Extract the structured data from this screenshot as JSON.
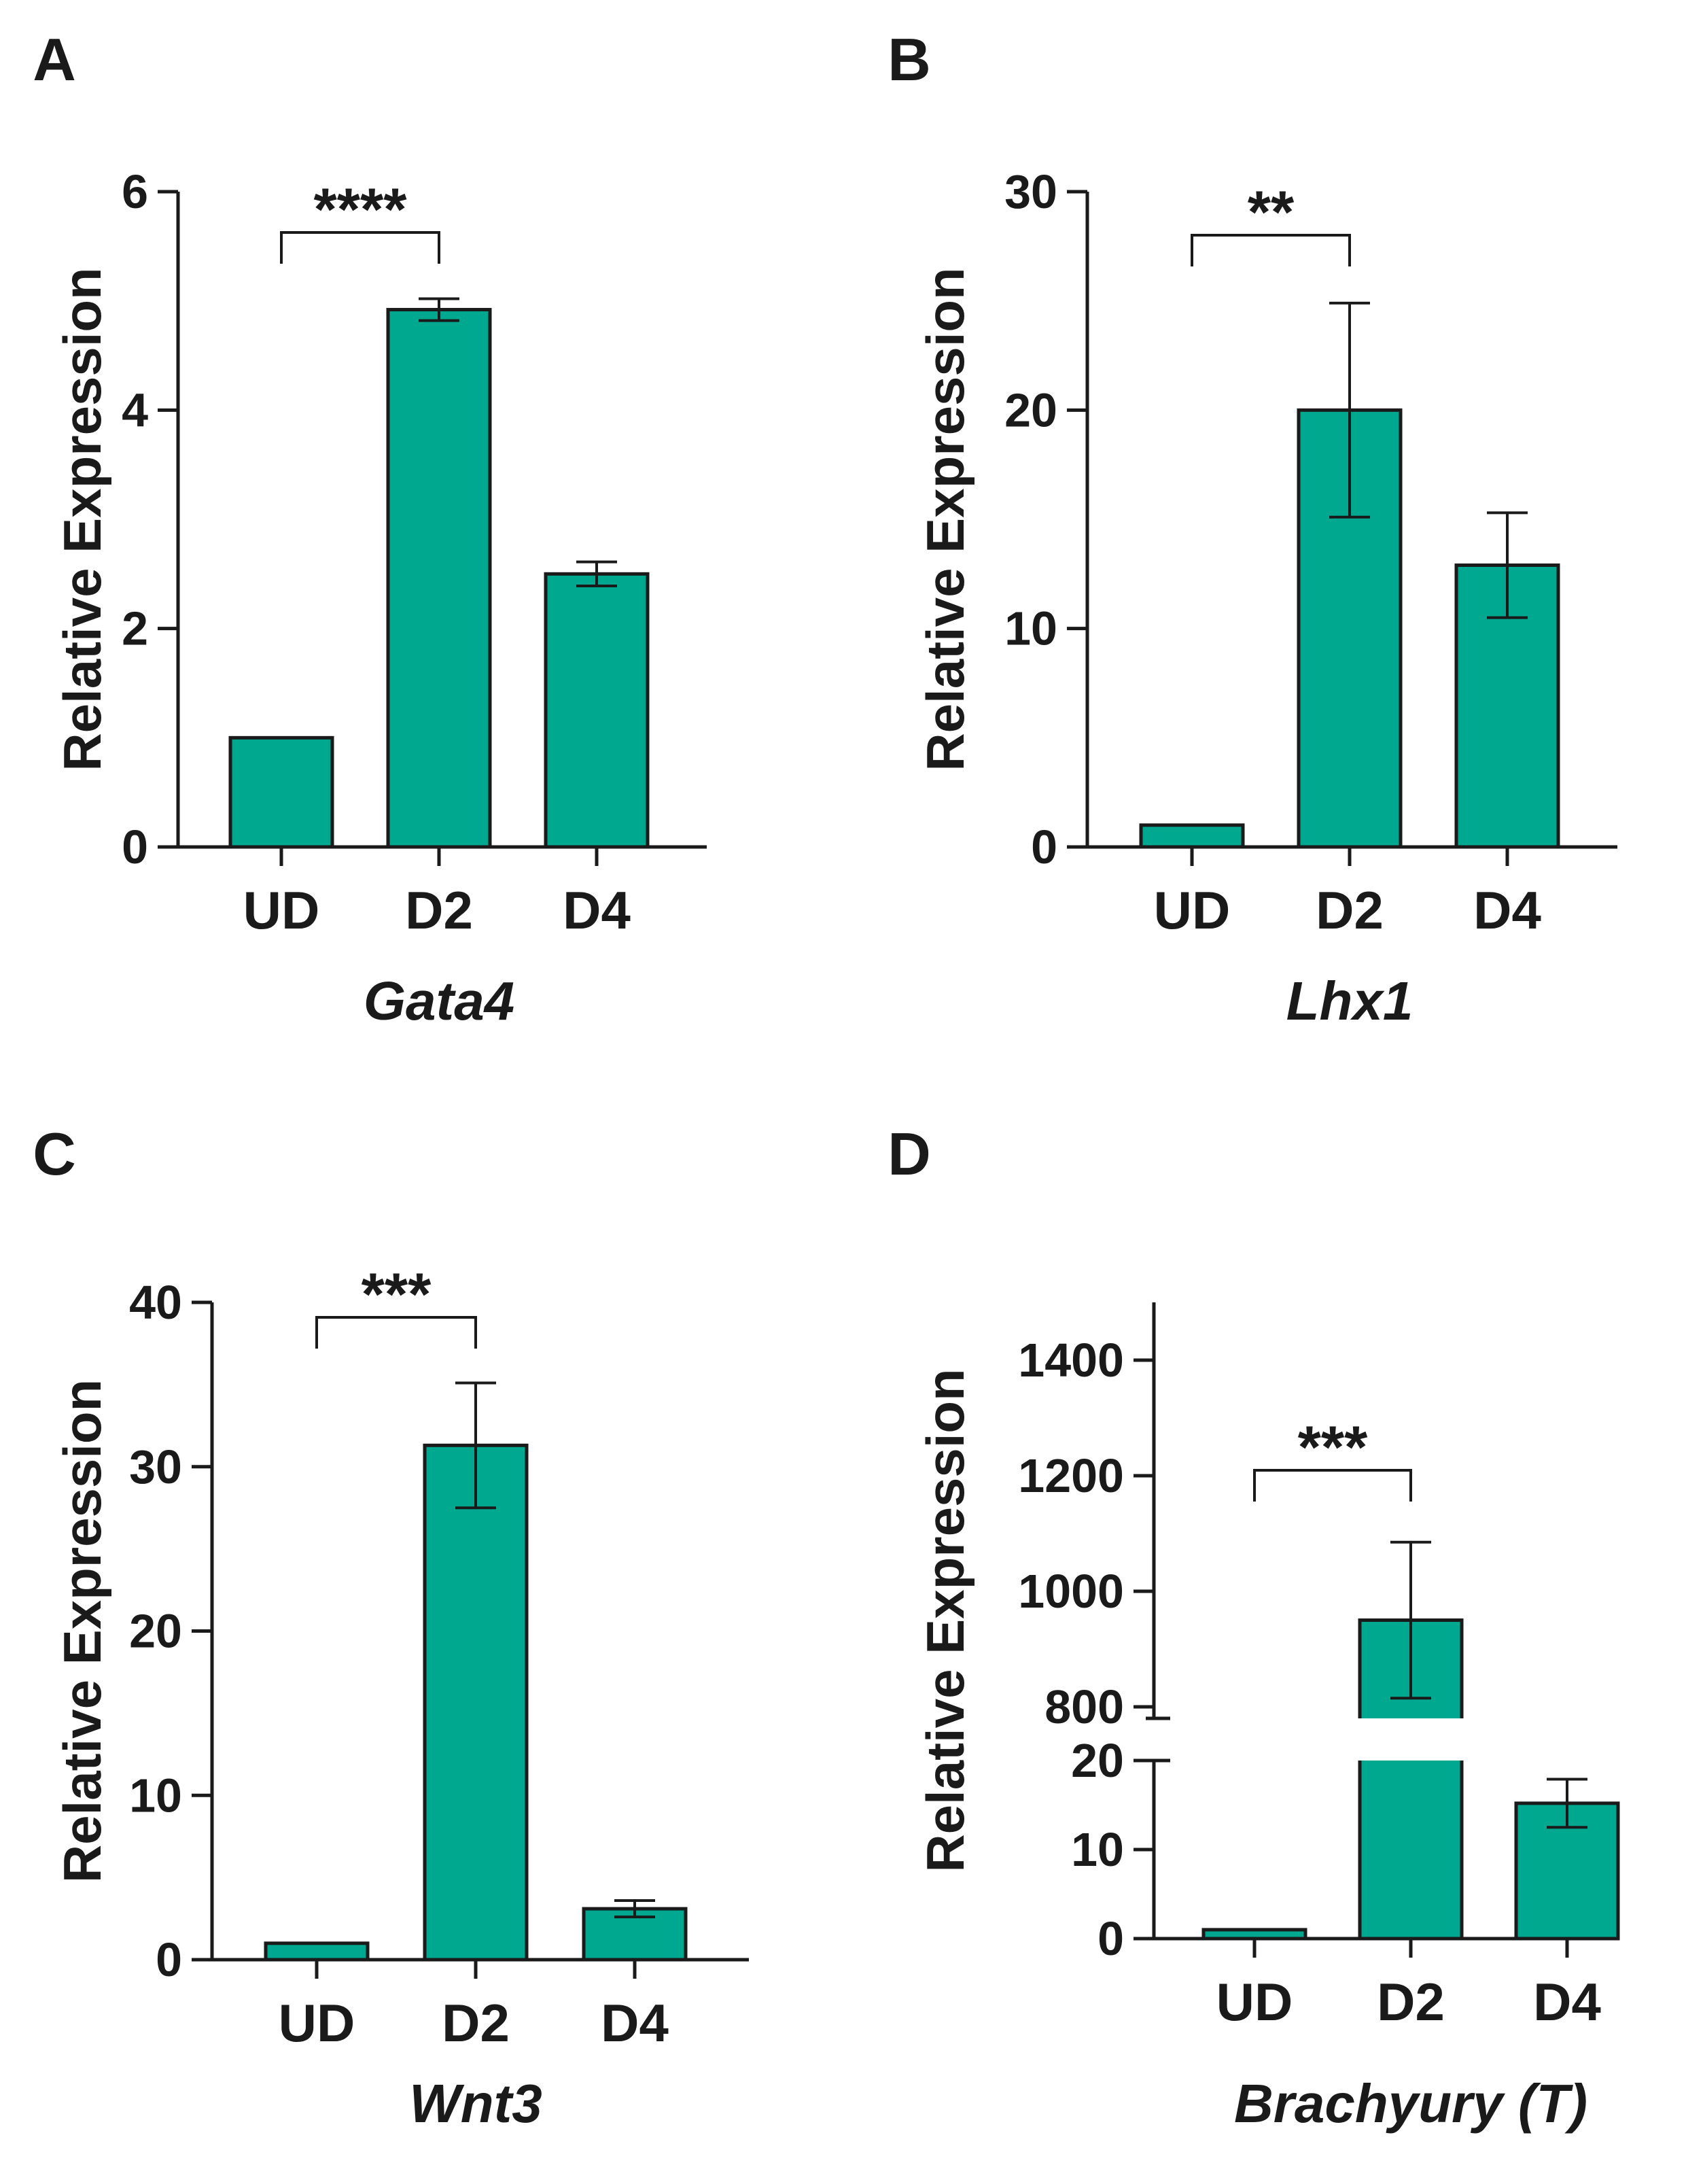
{
  "colors": {
    "bar": "#00A88F",
    "ink": "#1a1a1a"
  },
  "chart_data": [
    {
      "panel": "A",
      "type": "bar",
      "categories": [
        "UD",
        "D2",
        "D4"
      ],
      "values": [
        1.0,
        4.92,
        2.5
      ],
      "error": [
        0,
        0.1,
        0.11
      ],
      "ylabel": "Relative Expression",
      "xlabel": "Gata4",
      "ylim": [
        0,
        6
      ],
      "yticks": [
        0,
        2,
        4,
        6
      ],
      "significance": {
        "from": "UD",
        "to": "D2",
        "label": "****"
      }
    },
    {
      "panel": "B",
      "type": "bar",
      "categories": [
        "UD",
        "D2",
        "D4"
      ],
      "values": [
        1.0,
        20.0,
        12.9
      ],
      "error": [
        0,
        4.9,
        2.4
      ],
      "ylabel": "Relative Expression",
      "xlabel": "Lhx1",
      "ylim": [
        0,
        30
      ],
      "yticks": [
        0,
        10,
        20,
        30
      ],
      "significance": {
        "from": "UD",
        "to": "D2",
        "label": "**"
      }
    },
    {
      "panel": "C",
      "type": "bar",
      "categories": [
        "UD",
        "D2",
        "D4"
      ],
      "values": [
        1.0,
        31.3,
        3.1
      ],
      "error": [
        0,
        3.8,
        0.5
      ],
      "ylabel": "Relative Expression",
      "xlabel": "Wnt3",
      "ylim": [
        0,
        40
      ],
      "yticks": [
        0,
        10,
        20,
        30,
        40
      ],
      "significance": {
        "from": "UD",
        "to": "D2",
        "label": "***"
      }
    },
    {
      "panel": "D",
      "type": "bar",
      "categories": [
        "UD",
        "D2",
        "D4"
      ],
      "values": [
        1.0,
        950,
        15.2
      ],
      "error": [
        0,
        135,
        2.7
      ],
      "ylabel": "Relative Expression",
      "xlabel": "Brachyury (T)",
      "broken_axis": {
        "lower": {
          "ylim": [
            0,
            20
          ],
          "yticks": [
            0,
            10,
            20
          ]
        },
        "upper": {
          "ylim": [
            780,
            1500
          ],
          "yticks": [
            800,
            1000,
            1200,
            1400
          ]
        }
      },
      "significance": {
        "from": "UD",
        "to": "D2",
        "label": "***"
      }
    }
  ]
}
